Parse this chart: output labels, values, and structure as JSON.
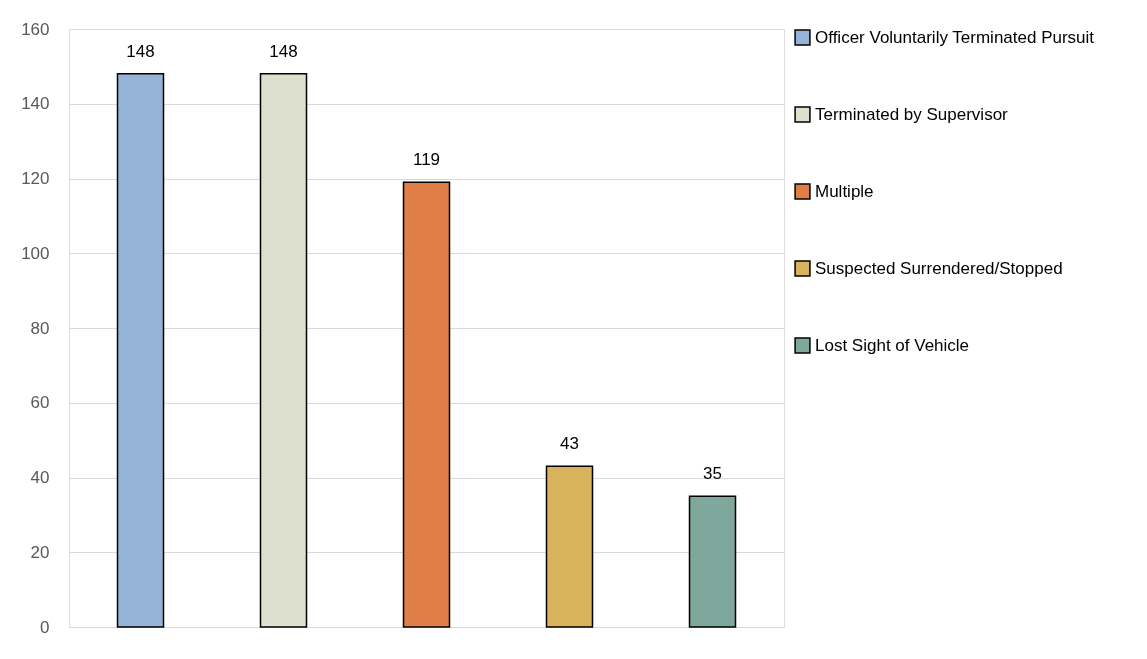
{
  "chart_data": {
    "type": "bar",
    "categories": [
      null,
      null,
      null,
      null,
      null
    ],
    "series": [
      {
        "name": "Officer Voluntarily Terminated Pursuit",
        "color": "#95b3d7",
        "values": [
          148,
          null,
          null,
          null,
          null
        ]
      },
      {
        "name": "Terminated by Supervisor",
        "color": "#dddfcf",
        "values": [
          null,
          148,
          null,
          null,
          null
        ]
      },
      {
        "name": "Multiple",
        "color": "#e07e47",
        "values": [
          null,
          null,
          119,
          null,
          null
        ]
      },
      {
        "name": "Suspected Surrendered/Stopped",
        "color": "#d9b25c",
        "values": [
          null,
          null,
          null,
          43,
          null
        ]
      },
      {
        "name": "Lost Sight of Vehicle",
        "color": "#7ea89b",
        "values": [
          null,
          null,
          null,
          null,
          35
        ]
      }
    ],
    "ylim": [
      0,
      160
    ],
    "yticks": [
      0,
      20,
      40,
      60,
      80,
      100,
      120,
      140,
      160
    ],
    "grid": "y",
    "legend": "right",
    "data_labels": true,
    "tick_labels": "y"
  }
}
